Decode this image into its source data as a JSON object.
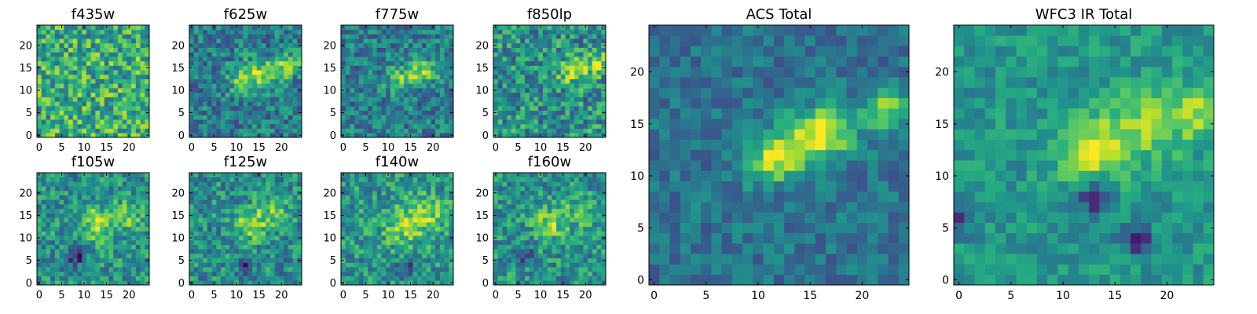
{
  "figure": {
    "colormap": "viridis",
    "colormap_stops": [
      "#440154",
      "#472d7b",
      "#3b528b",
      "#2c728e",
      "#21918c",
      "#28ae80",
      "#5ec962",
      "#addc30",
      "#fde725"
    ],
    "pixel_grid": "25x25",
    "axes_range": [
      -0.5,
      24.5
    ]
  },
  "chart_data": [
    {
      "type": "heatmap",
      "title": "f435w",
      "xticks": [
        0,
        5,
        10,
        15,
        20
      ],
      "yticks": [
        0,
        5,
        10,
        15,
        20
      ],
      "xlim": [
        -0.5,
        24.5
      ],
      "ylim": [
        -0.5,
        24.5
      ],
      "feature": "pure noise, uniformly bright",
      "noise": 0.28,
      "base": 0.62,
      "sources": []
    },
    {
      "type": "heatmap",
      "title": "f625w",
      "xticks": [
        0,
        5,
        10,
        15,
        20
      ],
      "yticks": [
        0,
        5,
        10,
        15,
        20
      ],
      "xlim": [
        -0.5,
        24.5
      ],
      "ylim": [
        -0.5,
        24.5
      ],
      "feature": "diagonal streak from (10,12) to (23,16)",
      "noise": 0.22,
      "base": 0.42,
      "sources": [
        [
          11,
          12.5,
          2.2,
          0.28
        ],
        [
          15,
          13.5,
          2.2,
          0.3
        ],
        [
          19,
          14.5,
          2.0,
          0.3
        ],
        [
          22.5,
          16,
          1.6,
          0.32
        ]
      ]
    },
    {
      "type": "heatmap",
      "title": "f775w",
      "xticks": [
        0,
        5,
        10,
        15,
        20
      ],
      "yticks": [
        0,
        5,
        10,
        15,
        20
      ],
      "xlim": [
        -0.5,
        24.5
      ],
      "ylim": [
        -0.5,
        24.5
      ],
      "feature": "diagonal streak from (11,12) to (19,15)",
      "noise": 0.22,
      "base": 0.42,
      "sources": [
        [
          12,
          12.5,
          2.0,
          0.28
        ],
        [
          16,
          13.5,
          2.0,
          0.3
        ],
        [
          19,
          14.5,
          1.6,
          0.26
        ]
      ]
    },
    {
      "type": "heatmap",
      "title": "f850lp",
      "xticks": [
        0,
        5,
        10,
        15,
        20
      ],
      "yticks": [
        0,
        5,
        10,
        15,
        20
      ],
      "xlim": [
        -0.5,
        24.5
      ],
      "ylim": [
        -0.5,
        24.5
      ],
      "feature": "streak near (15-23, 13-16)",
      "noise": 0.26,
      "base": 0.5,
      "sources": [
        [
          16,
          13.5,
          2.0,
          0.22
        ],
        [
          20,
          15,
          2.0,
          0.26
        ],
        [
          23,
          16.5,
          1.6,
          0.26
        ]
      ]
    },
    {
      "type": "heatmap",
      "title": "f105w",
      "xticks": [
        0,
        5,
        10,
        15,
        20
      ],
      "yticks": [
        0,
        5,
        10,
        15,
        20
      ],
      "xlim": [
        -0.5,
        24.5
      ],
      "ylim": [
        -0.5,
        24.5
      ],
      "feature": "blob near (13,13), dark patch near (8,6)",
      "noise": 0.22,
      "base": 0.5,
      "sources": [
        [
          13,
          13,
          2.6,
          0.35
        ],
        [
          19,
          15,
          2.4,
          0.25
        ],
        [
          8,
          6,
          1.3,
          -0.45
        ]
      ]
    },
    {
      "type": "heatmap",
      "title": "f125w",
      "xticks": [
        0,
        5,
        10,
        15,
        20
      ],
      "yticks": [
        0,
        5,
        10,
        15,
        20
      ],
      "xlim": [
        -0.5,
        24.5
      ],
      "ylim": [
        -0.5,
        24.5
      ],
      "feature": "blob near (13,13)",
      "noise": 0.22,
      "base": 0.48,
      "sources": [
        [
          13,
          13,
          2.6,
          0.33
        ],
        [
          18,
          15.5,
          2.4,
          0.26
        ],
        [
          12,
          4,
          1.2,
          -0.4
        ]
      ]
    },
    {
      "type": "heatmap",
      "title": "f140w",
      "xticks": [
        0,
        5,
        10,
        15,
        20
      ],
      "yticks": [
        0,
        5,
        10,
        15,
        20
      ],
      "xlim": [
        -0.5,
        24.5
      ],
      "ylim": [
        -0.5,
        24.5
      ],
      "feature": "broad blob near (12-20, 12-16)",
      "noise": 0.22,
      "base": 0.52,
      "sources": [
        [
          13,
          12.5,
          3.0,
          0.3
        ],
        [
          19,
          15,
          2.8,
          0.28
        ],
        [
          14,
          3,
          1.4,
          -0.35
        ]
      ]
    },
    {
      "type": "heatmap",
      "title": "f160w",
      "xticks": [
        0,
        5,
        10,
        15,
        20
      ],
      "yticks": [
        0,
        5,
        10,
        15,
        20
      ],
      "xlim": [
        -0.5,
        24.5
      ],
      "ylim": [
        -0.5,
        24.5
      ],
      "feature": "blob near (12,13)",
      "noise": 0.22,
      "base": 0.5,
      "sources": [
        [
          12,
          13,
          2.4,
          0.35
        ],
        [
          19,
          16,
          2.6,
          0.22
        ],
        [
          7,
          6,
          1.2,
          -0.35
        ]
      ]
    },
    {
      "type": "heatmap",
      "title": "ACS Total",
      "xticks": [
        0,
        5,
        10,
        15,
        20
      ],
      "yticks": [
        0,
        5,
        10,
        15,
        20
      ],
      "xlim": [
        -0.5,
        24.5
      ],
      "ylim": [
        -0.5,
        24.5
      ],
      "feature": "diagonal ridge from (11,12) to (24,17), brightest near (11-18, 12-15)",
      "noise": 0.14,
      "base": 0.38,
      "sources": [
        [
          11,
          11.5,
          1.6,
          0.45
        ],
        [
          14,
          13,
          1.8,
          0.45
        ],
        [
          17,
          14.5,
          1.8,
          0.48
        ],
        [
          22.5,
          16.5,
          1.4,
          0.45
        ]
      ]
    },
    {
      "type": "heatmap",
      "title": "WFC3 IR Total",
      "xticks": [
        0,
        5,
        10,
        15,
        20
      ],
      "yticks": [
        0,
        5,
        10,
        15,
        20
      ],
      "xlim": [
        -0.5,
        24.5
      ],
      "ylim": [
        -0.5,
        24.5
      ],
      "feature": "bright blob near (12,12.5), secondary near (17-24,15-17), dark pixels near (13,8),(17,4)",
      "noise": 0.13,
      "base": 0.52,
      "sources": [
        [
          12.5,
          12.5,
          2.2,
          0.45
        ],
        [
          18,
          15,
          2.4,
          0.3
        ],
        [
          23,
          16,
          1.8,
          0.3
        ],
        [
          13,
          8,
          1.1,
          -0.45
        ],
        [
          17,
          4,
          1.0,
          -0.45
        ],
        [
          0,
          6,
          1.0,
          -0.4
        ]
      ]
    }
  ]
}
